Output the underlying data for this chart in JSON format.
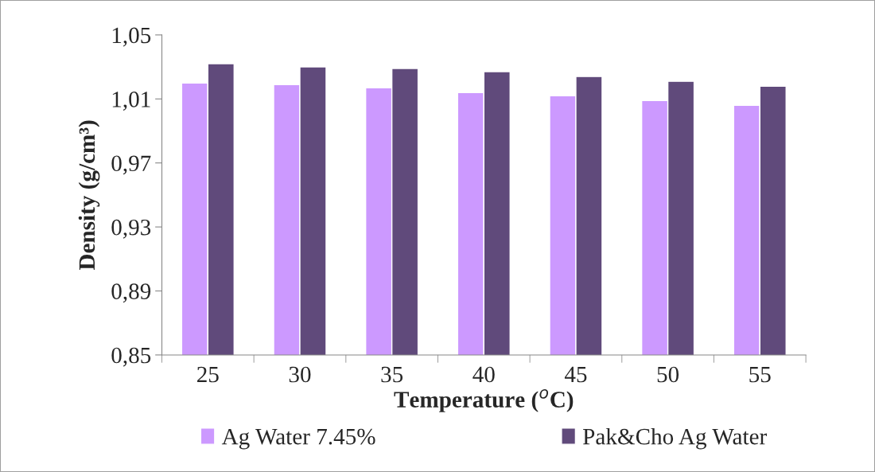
{
  "chart_data": {
    "type": "bar",
    "xlabel": "Temperature ($^{o}$C)",
    "ylabel": "Density (g/cm³)",
    "categories": [
      "25",
      "30",
      "35",
      "40",
      "45",
      "50",
      "55"
    ],
    "series": [
      {
        "name": "Ag Water 7.45%",
        "color": "#cc99ff",
        "values": [
          1.02,
          1.019,
          1.017,
          1.014,
          1.012,
          1.009,
          1.006
        ]
      },
      {
        "name": "Pak&Cho Ag Water",
        "color": "#604a7b",
        "values": [
          1.032,
          1.03,
          1.029,
          1.027,
          1.024,
          1.021,
          1.018
        ]
      }
    ],
    "ylim": [
      0.85,
      1.05
    ],
    "yticks": [
      {
        "value": 0.85,
        "label": "0,85"
      },
      {
        "value": 0.89,
        "label": "0,89"
      },
      {
        "value": 0.93,
        "label": "0,93"
      },
      {
        "value": 0.97,
        "label": "0,97"
      },
      {
        "value": 1.01,
        "label": "1,01"
      },
      {
        "value": 1.05,
        "label": "1,05"
      }
    ],
    "grid": false,
    "legend": "bottom"
  }
}
